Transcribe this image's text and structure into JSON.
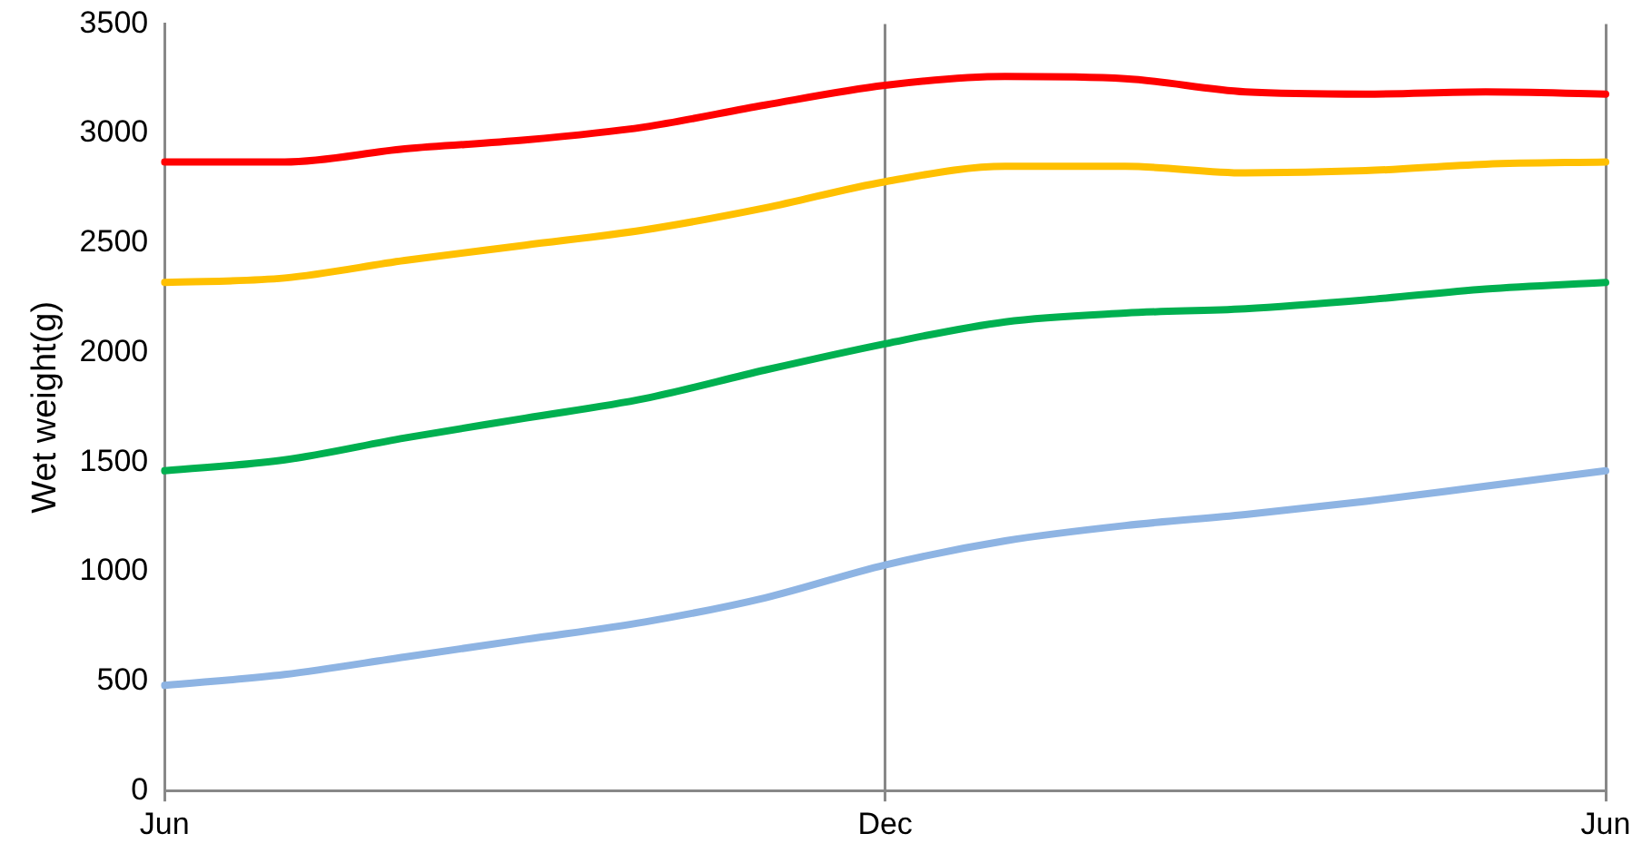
{
  "chart_data": {
    "type": "line",
    "ylabel": "Wet weight(g)",
    "categories": [
      "Jun",
      null,
      null,
      null,
      null,
      null,
      "Dec",
      null,
      null,
      null,
      null,
      null,
      "Jun"
    ],
    "ylim": [
      0,
      3500
    ],
    "yticks": [
      0,
      500,
      1000,
      1500,
      2000,
      2500,
      3000,
      3500
    ],
    "grid": "x",
    "legend": false,
    "marker": "none",
    "line_style": "solid",
    "series": [
      {
        "color": "#ff0000",
        "values": [
          2870,
          2870,
          2930,
          2970,
          3030,
          3130,
          3220,
          3260,
          3250,
          3190,
          3180,
          3190,
          3180
        ]
      },
      {
        "color": "#ffc000",
        "values": [
          2320,
          2340,
          2420,
          2490,
          2560,
          2660,
          2780,
          2850,
          2850,
          2820,
          2830,
          2860,
          2870
        ]
      },
      {
        "color": "#00b050",
        "values": [
          1460,
          1510,
          1610,
          1700,
          1790,
          1920,
          2040,
          2140,
          2180,
          2200,
          2240,
          2290,
          2320
        ]
      },
      {
        "color": "#8eb4e3",
        "values": [
          480,
          530,
          610,
          690,
          770,
          880,
          1030,
          1140,
          1210,
          1260,
          1320,
          1390,
          1460
        ]
      }
    ]
  }
}
